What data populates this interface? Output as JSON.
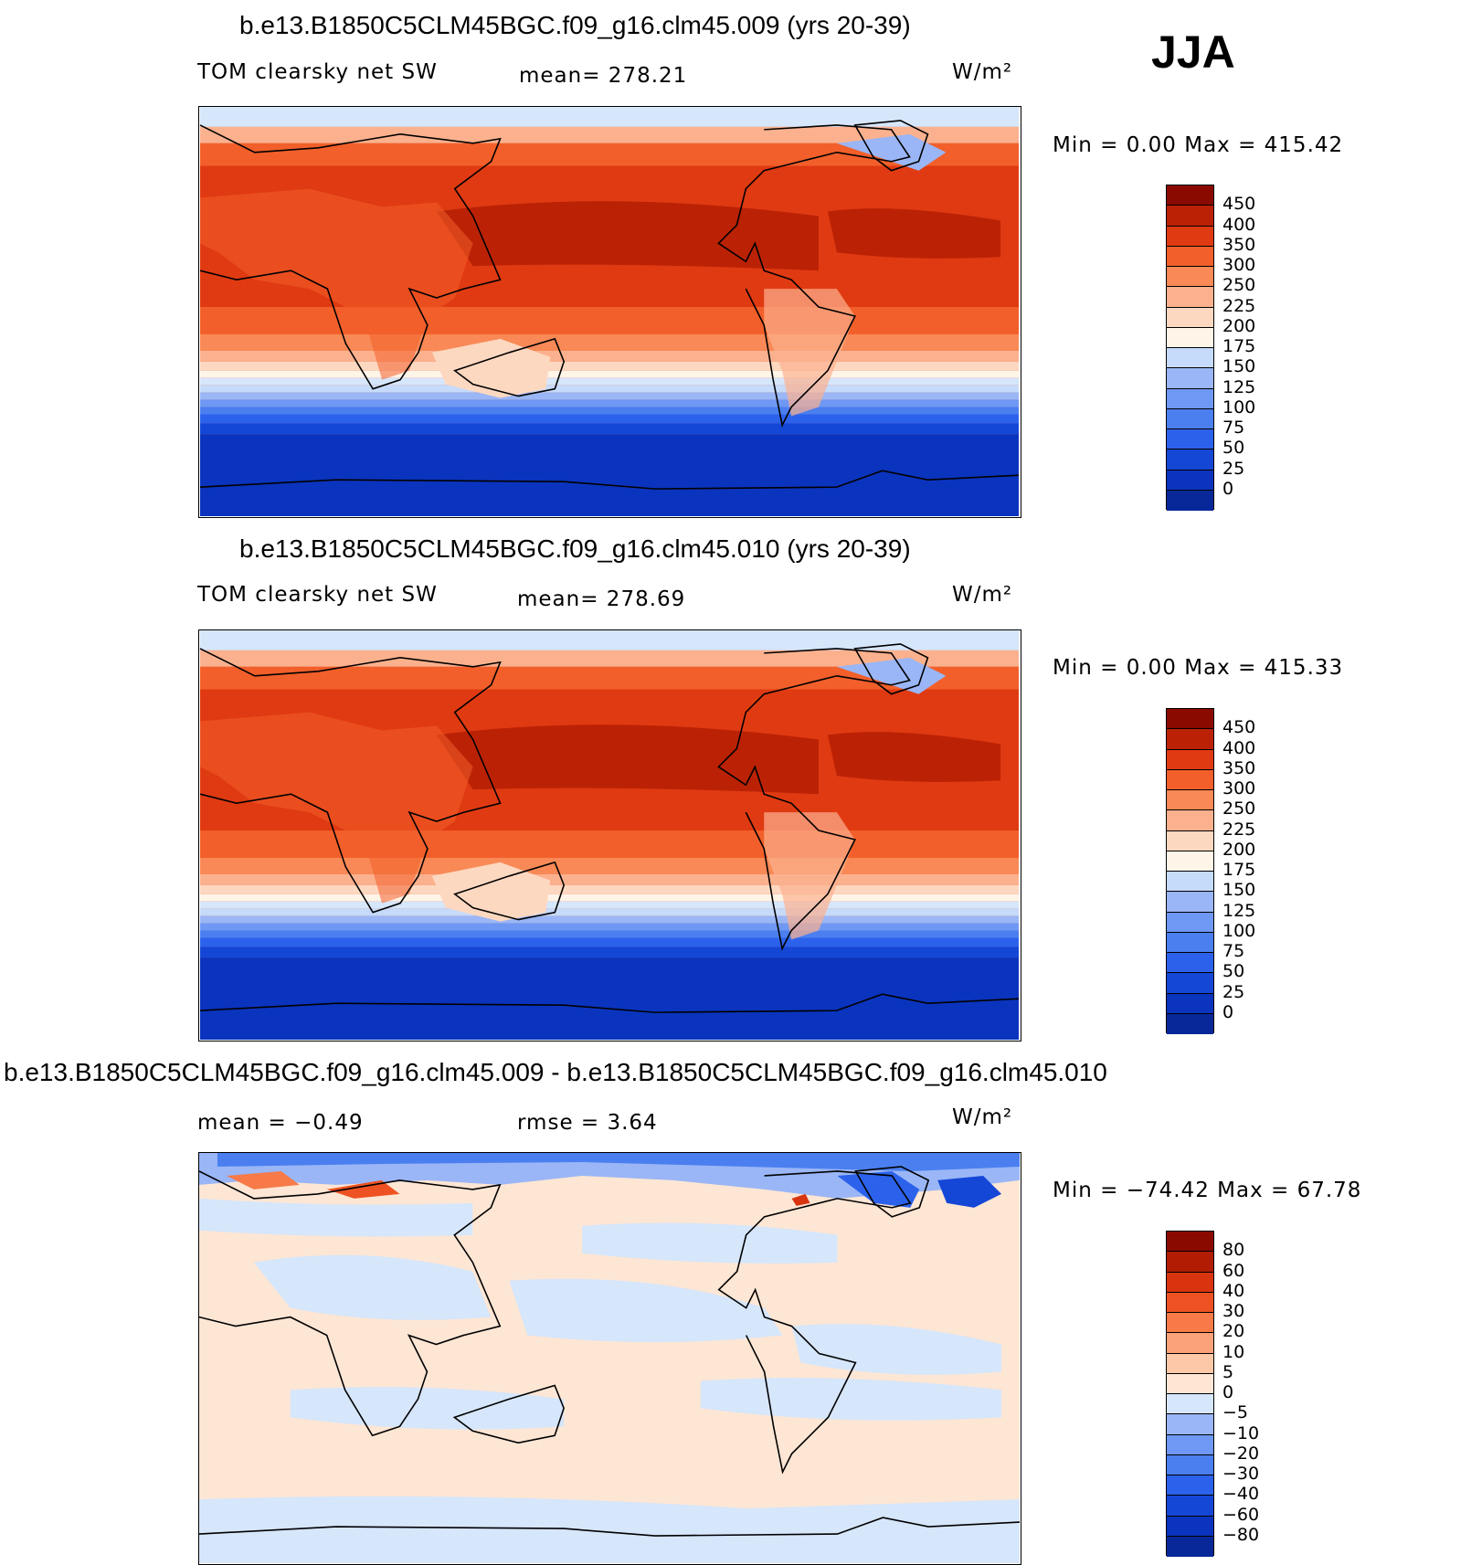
{
  "season": "JJA",
  "palette": {
    "abs": [
      "#08289a",
      "#0a34be",
      "#1547d6",
      "#2c62eb",
      "#4b7ff0",
      "#6e98f3",
      "#9ab6f6",
      "#c6dafa",
      "#fff4e8",
      "#fdd8c0",
      "#fcb18e",
      "#f98956",
      "#f25f2a",
      "#e03a12",
      "#bb2205",
      "#8b0a00"
    ],
    "diff": [
      "#08289a",
      "#0a34be",
      "#1547d6",
      "#2c62eb",
      "#4b7ff0",
      "#6e98f3",
      "#9ab6f6",
      "#d6e6fb",
      "#fde6d4",
      "#fdc8a8",
      "#fba27a",
      "#f77a48",
      "#ee5222",
      "#d93410",
      "#b21c02",
      "#8b0a00"
    ]
  },
  "panels": [
    {
      "title": "b.e13.B1850C5CLM45BGC.f09_g16.clm45.009 (yrs 20-39)",
      "left_label": "TOM clearsky net SW",
      "mid_label": "mean= 278.21",
      "units": "W/m²",
      "minmax": "Min =    0.00 Max = 415.42",
      "colorbar_labels": [
        "450",
        "400",
        "350",
        "300",
        "250",
        "225",
        "200",
        "175",
        "150",
        "125",
        "100",
        "75",
        "50",
        "25",
        "0"
      ]
    },
    {
      "title": "b.e13.B1850C5CLM45BGC.f09_g16.clm45.010 (yrs 20-39)",
      "left_label": "TOM clearsky net SW",
      "mid_label": "mean= 278.69",
      "units": "W/m²",
      "minmax": "Min =    0.00 Max = 415.33",
      "colorbar_labels": [
        "450",
        "400",
        "350",
        "300",
        "250",
        "225",
        "200",
        "175",
        "150",
        "125",
        "100",
        "75",
        "50",
        "25",
        "0"
      ]
    },
    {
      "title": "b.e13.B1850C5CLM45BGC.f09_g16.clm45.009 - b.e13.B1850C5CLM45BGC.f09_g16.clm45.010",
      "left_label": "mean =   −0.49",
      "mid_label": "rmse =    3.64",
      "units": "W/m²",
      "minmax": "Min = −74.42 Max =   67.78",
      "colorbar_labels": [
        "80",
        "60",
        "40",
        "30",
        "20",
        "10",
        "5",
        "0",
        "−5",
        "−10",
        "−20",
        "−30",
        "−40",
        "−60",
        "−80"
      ]
    }
  ]
}
